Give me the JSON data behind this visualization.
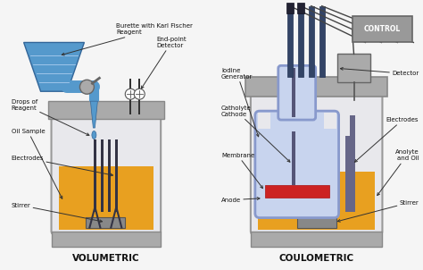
{
  "bg_color": "#f5f5f5",
  "vol_label": "VOLUMETRIC",
  "coul_label": "COULOMETRIC",
  "control_label": "CONTROL",
  "colors": {
    "burette_blue": "#5599cc",
    "burette_light": "#7ab3dd",
    "liquid_yellow": "#e8a020",
    "flask_gray": "#aaaaaa",
    "flask_gray_dark": "#888888",
    "flask_body": "#e8e8ec",
    "flask_ec": "#999999",
    "electrode_dark": "#333344",
    "inner_vessel_blue": "#8899cc",
    "inner_vessel_fill": "#c8d4ee",
    "membrane_red": "#cc2222",
    "control_box": "#999999",
    "detector_box": "#aaaaaa",
    "arrow_color": "#333333",
    "text_color": "#111111",
    "stirrer_gray": "#888888",
    "tube_dark": "#334466",
    "white": "#ffffff"
  }
}
